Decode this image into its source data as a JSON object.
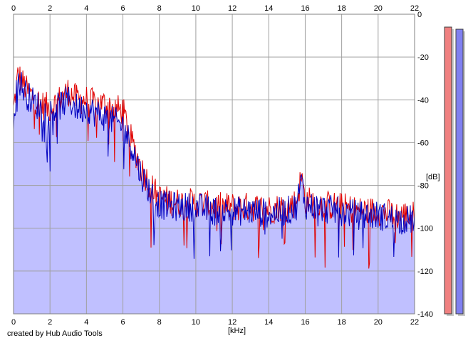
{
  "chart_data": {
    "type": "area",
    "xlabel": "[kHz]",
    "ylabel": "[dB]",
    "xlim": [
      0,
      22
    ],
    "ylim": [
      -140,
      0
    ],
    "xticks": [
      "0",
      "2",
      "4",
      "6",
      "8",
      "10",
      "12",
      "14",
      "16",
      "18",
      "20",
      "22"
    ],
    "yticks": [
      "0",
      "-20",
      "-40",
      "-60",
      "-80",
      "-100",
      "-120",
      "-140"
    ],
    "grid": true,
    "series": [
      {
        "color": "#e00000",
        "x": [
          0,
          0.25,
          0.5,
          0.75,
          1,
          1.5,
          2,
          2.5,
          3,
          3.5,
          4,
          4.5,
          5,
          5.5,
          6,
          6.5,
          7,
          7.5,
          8,
          9,
          10,
          11,
          12,
          13,
          14,
          15,
          15.5,
          15.8,
          16,
          17,
          18,
          19,
          20,
          21,
          22
        ],
        "values": [
          -45,
          -28,
          -32,
          -36,
          -38,
          -42,
          -44,
          -40,
          -36,
          -40,
          -40,
          -42,
          -42,
          -44,
          -45,
          -60,
          -72,
          -80,
          -86,
          -88,
          -88,
          -90,
          -90,
          -90,
          -91,
          -90,
          -88,
          -76,
          -87,
          -89,
          -90,
          -92,
          -92,
          -94,
          -94
        ]
      },
      {
        "color": "#0000c0",
        "x": [
          0,
          0.25,
          0.5,
          0.75,
          1,
          1.5,
          2,
          2.5,
          3,
          3.5,
          4,
          4.5,
          5,
          5.5,
          6,
          6.5,
          7,
          7.5,
          8,
          9,
          10,
          11,
          12,
          13,
          14,
          15,
          15.5,
          15.8,
          16,
          17,
          18,
          19,
          20,
          21,
          22
        ],
        "values": [
          -48,
          -30,
          -34,
          -38,
          -40,
          -44,
          -46,
          -43,
          -40,
          -44,
          -44,
          -46,
          -48,
          -50,
          -52,
          -62,
          -75,
          -83,
          -89,
          -90,
          -90,
          -92,
          -92,
          -92,
          -93,
          -92,
          -90,
          -78,
          -89,
          -91,
          -92,
          -94,
          -94,
          -96,
          -96
        ]
      }
    ],
    "area_fill": "#c0c0ff",
    "level_meters": [
      {
        "color": "#f08080",
        "value": -6
      },
      {
        "color": "#8080f0",
        "value": -7
      }
    ]
  },
  "footer": {
    "credit": "created by Hub Audio Tools"
  }
}
